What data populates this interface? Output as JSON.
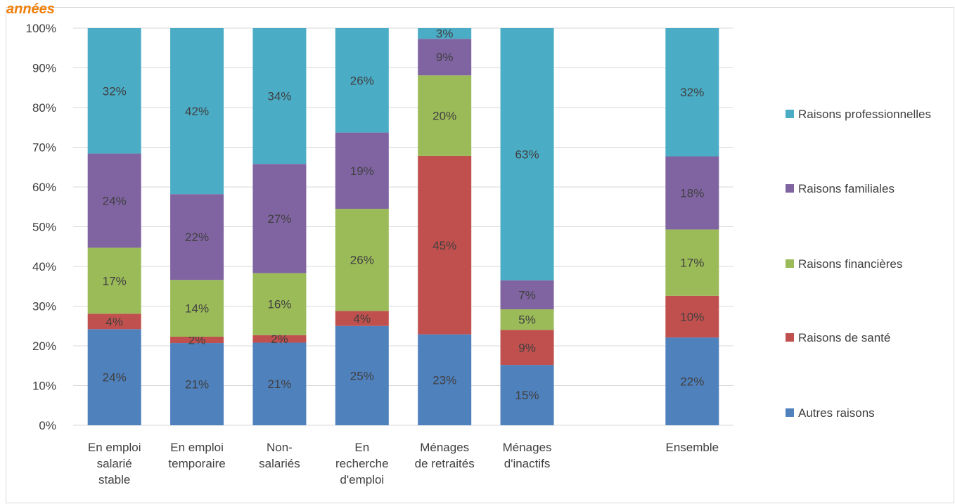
{
  "header": {
    "title_fragment": "années"
  },
  "chart_data": {
    "type": "bar",
    "stacked": true,
    "ylim": [
      0,
      100
    ],
    "yticks": [
      "0%",
      "10%",
      "20%",
      "30%",
      "40%",
      "50%",
      "60%",
      "70%",
      "80%",
      "90%",
      "100%"
    ],
    "grid": true,
    "legend_position": "right",
    "categories": [
      {
        "lines": [
          "En emploi",
          "salarié",
          "stable"
        ]
      },
      {
        "lines": [
          "En emploi",
          "temporaire"
        ]
      },
      {
        "lines": [
          "Non-",
          "salariés"
        ]
      },
      {
        "lines": [
          "En",
          "recherche",
          "d'emploi"
        ]
      },
      {
        "lines": [
          "Ménages",
          "de retraités"
        ]
      },
      {
        "lines": [
          "Ménages",
          "d'inactifs"
        ]
      },
      {
        "lines": [
          ""
        ],
        "empty": true
      },
      {
        "lines": [
          "Ensemble"
        ]
      }
    ],
    "series": [
      {
        "name": "Autres raisons",
        "color": "#4f81bd",
        "values": [
          24,
          21,
          21,
          25,
          23,
          15,
          null,
          22
        ],
        "heights": [
          24.2,
          20.7,
          20.8,
          25.0,
          22.9,
          15.2,
          null,
          22.1
        ]
      },
      {
        "name": "Raisons de santé",
        "color": "#c0504d",
        "values": [
          4,
          2,
          2,
          4,
          45,
          9,
          null,
          10
        ],
        "heights": [
          3.9,
          1.6,
          1.9,
          3.8,
          44.9,
          8.8,
          null,
          10.5
        ]
      },
      {
        "name": "Raisons financières",
        "color": "#9bbb59",
        "values": [
          17,
          14,
          16,
          26,
          20,
          5,
          null,
          17
        ],
        "heights": [
          16.6,
          14.3,
          15.6,
          25.7,
          20.3,
          5.2,
          null,
          16.7
        ]
      },
      {
        "name": "Raisons familiales",
        "color": "#8064a2",
        "values": [
          24,
          22,
          27,
          19,
          9,
          7,
          null,
          18
        ],
        "heights": [
          23.7,
          21.6,
          27.5,
          19.2,
          9.2,
          7.3,
          null,
          18.4
        ]
      },
      {
        "name": "Raisons professionnelles",
        "color": "#4bacc6",
        "values": [
          32,
          42,
          34,
          26,
          3,
          63,
          null,
          32
        ],
        "heights": [
          31.6,
          41.8,
          34.2,
          26.3,
          2.7,
          63.5,
          null,
          32.3
        ]
      }
    ]
  }
}
